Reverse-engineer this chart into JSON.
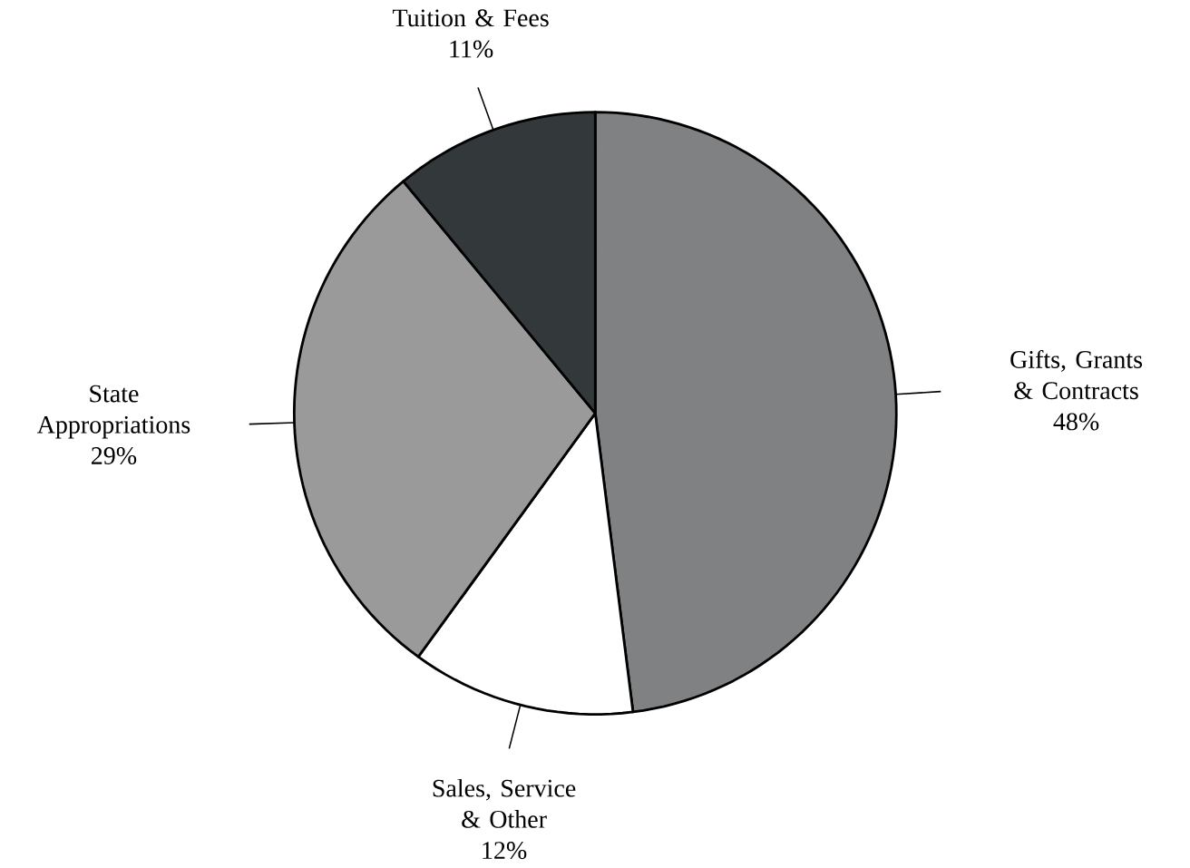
{
  "chart_data": {
    "type": "pie",
    "categories": [
      "Gifts, Grants & Contracts",
      "Sales, Service & Other",
      "State Appropriations",
      "Tuition & Fees"
    ],
    "values": [
      48,
      12,
      29,
      11
    ],
    "value_labels": [
      "48%",
      "12%",
      "29%",
      "11%"
    ],
    "colors": [
      "#7f8183",
      "#ffffff",
      "#9a9a9a",
      "#33383b"
    ]
  }
}
